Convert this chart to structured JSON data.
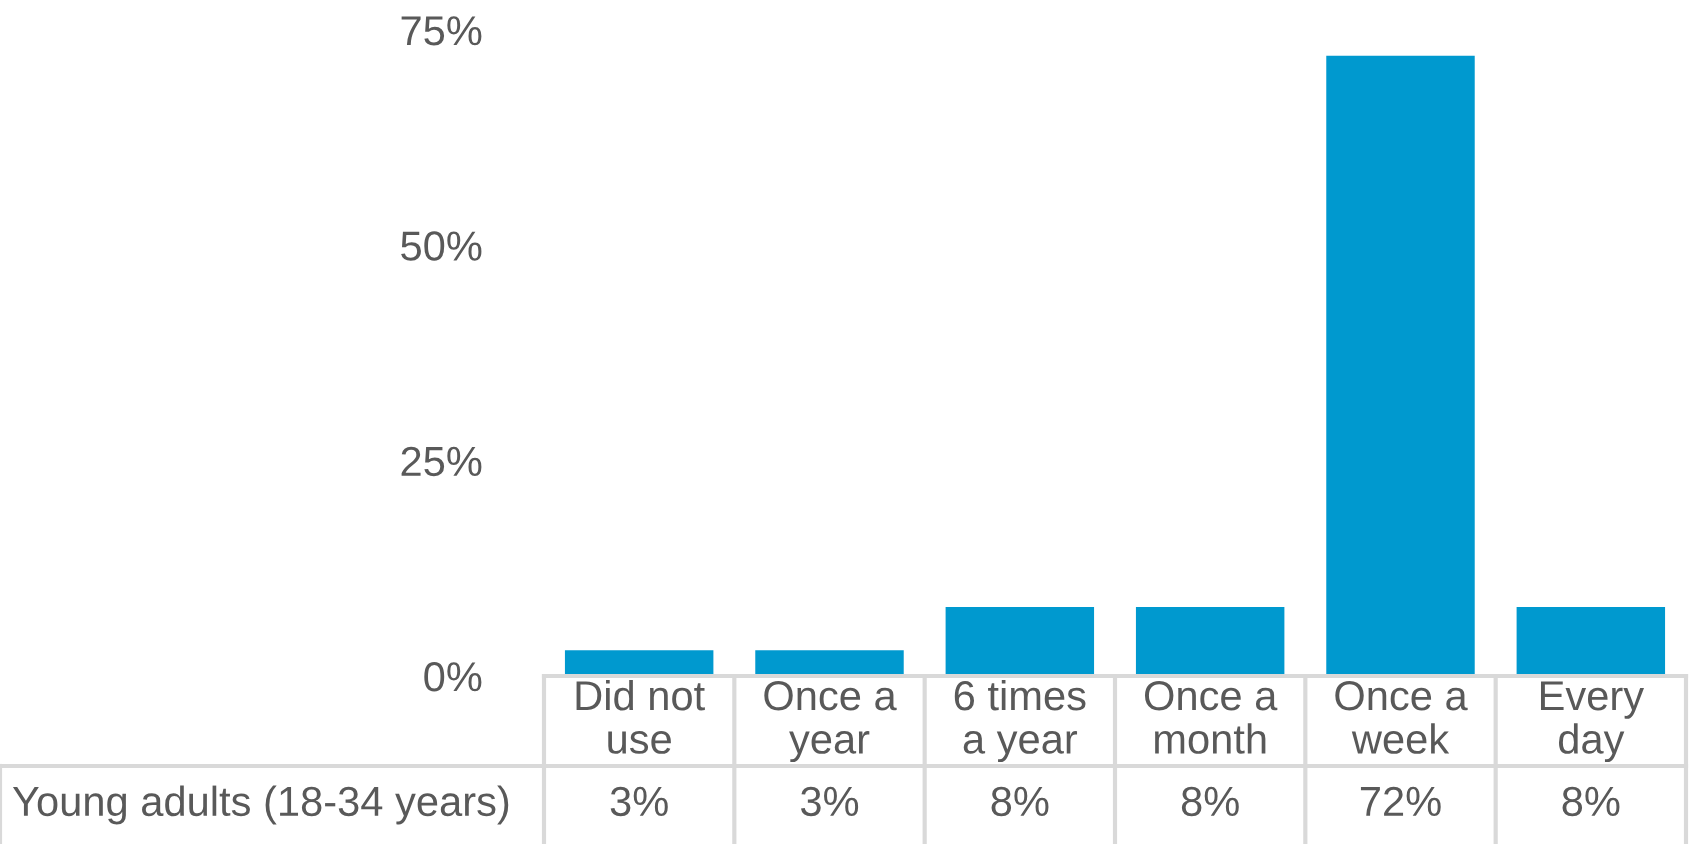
{
  "chart_data": {
    "type": "bar",
    "categories": [
      "Did not use",
      "Once a year",
      "6 times a year",
      "Once a month",
      "Once a week",
      "Every day"
    ],
    "series": [
      {
        "name": "Young adults (18-34 years)",
        "color": "#0099cf",
        "values": [
          3,
          3,
          8,
          8,
          72,
          8
        ],
        "value_labels": [
          "3%",
          "3%",
          "8%",
          "8%",
          "72%",
          "8%"
        ]
      }
    ],
    "ylim": [
      0,
      75
    ],
    "yticks": [
      {
        "value": 0,
        "label": "0%"
      },
      {
        "value": 25,
        "label": "25%"
      },
      {
        "value": 50,
        "label": "50%"
      },
      {
        "value": 75,
        "label": "75%"
      }
    ],
    "grid": false,
    "legend": false
  }
}
